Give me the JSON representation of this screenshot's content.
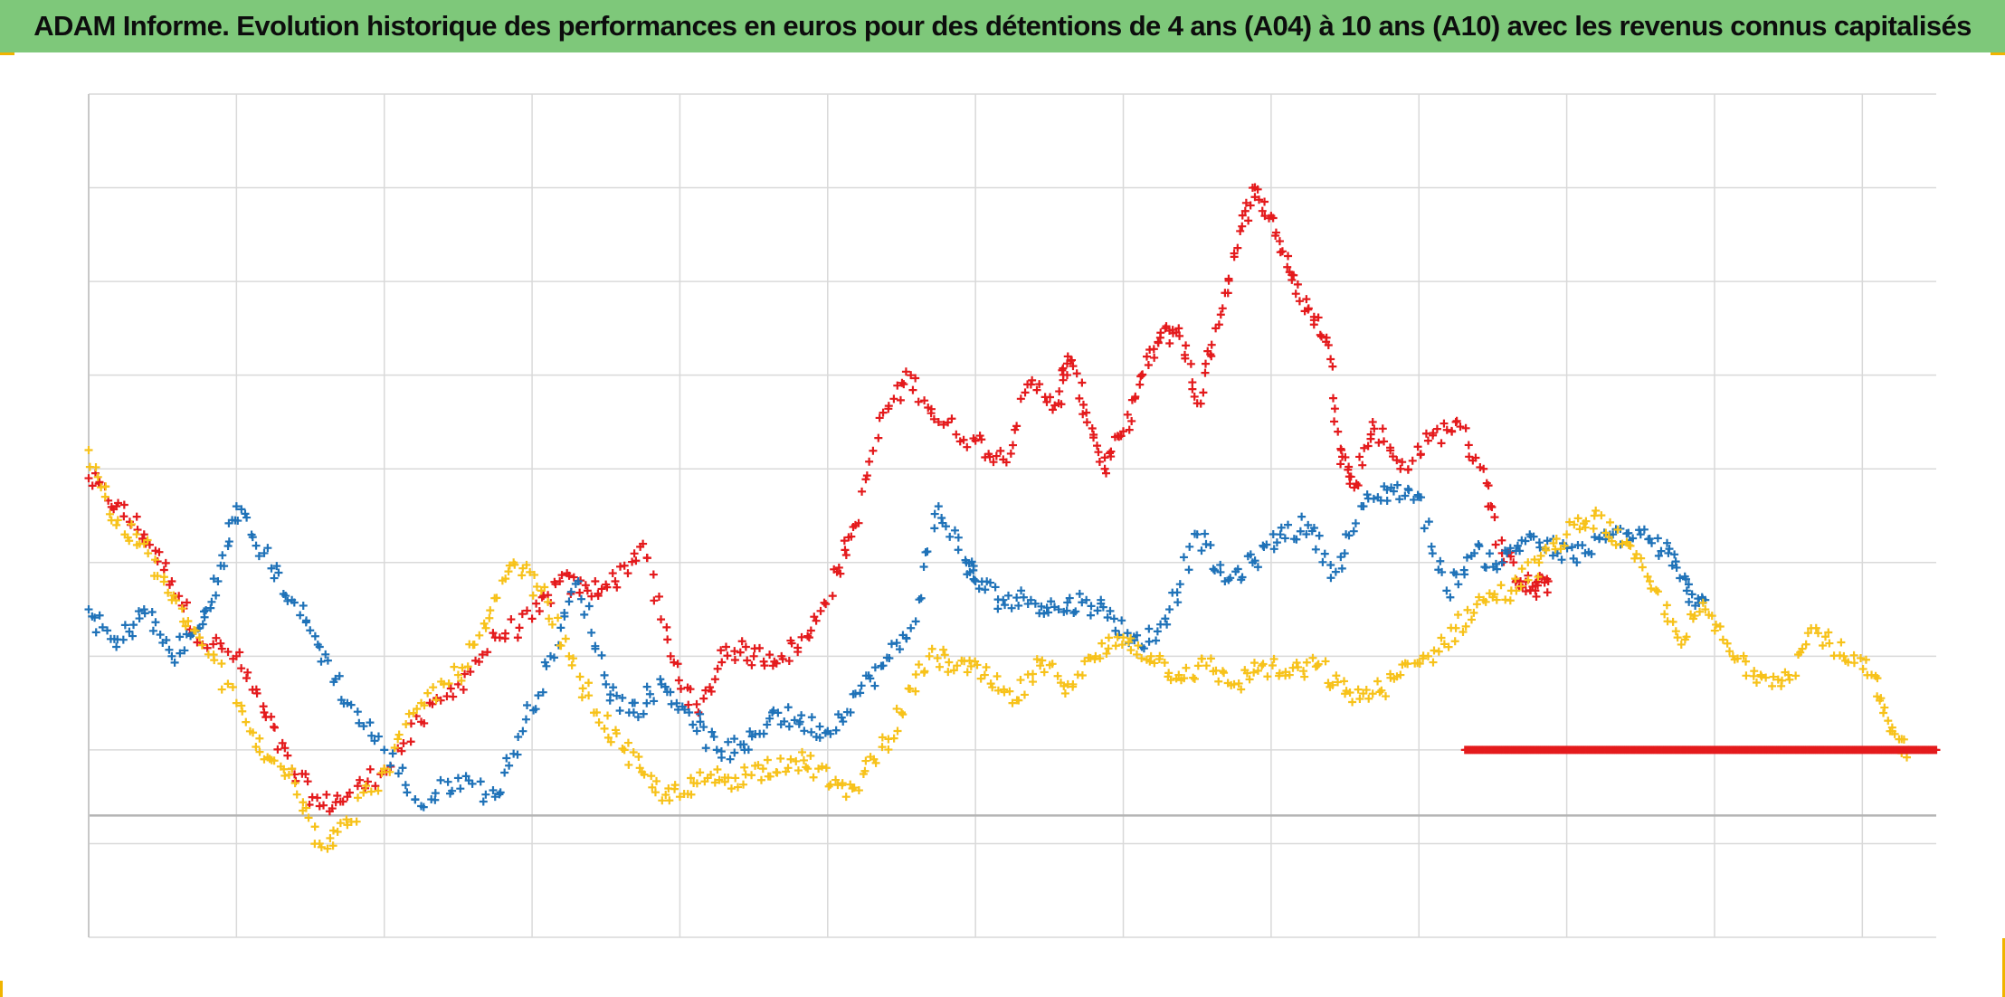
{
  "title": "ADAM Informe. Evolution historique des performances en euros pour des détentions de 4 ans (A04) à 10 ans (A10) avec les revenus connus capitalisés",
  "colors": {
    "title_bg": "#7ec87a",
    "series_red": "#e41a1c",
    "series_blue": "#1f72b8",
    "series_yellow": "#f7c21a",
    "grid": "#d9d9d9"
  },
  "chart_data": {
    "type": "scatter",
    "marker": "plus",
    "grid": true,
    "xlim": [
      0,
      100
    ],
    "ylim": [
      -10,
      80
    ],
    "baseline_y": 3,
    "x_gridlines": [
      0,
      8,
      16,
      24,
      32,
      40,
      48,
      56,
      64,
      72,
      80,
      88,
      96
    ],
    "y_gridlines": [
      -10,
      0,
      10,
      20,
      30,
      40,
      50,
      60,
      70,
      80
    ],
    "series": [
      {
        "color": "#e41a1c",
        "x": [
          0,
          1.5,
          3,
          4.5,
          6,
          8,
          9.5,
          11,
          12.5,
          14,
          16,
          18,
          20,
          22,
          24,
          25.5,
          27,
          28.5,
          30,
          31.5,
          33,
          34.5,
          36,
          37.5,
          39,
          40.5,
          41.5,
          43,
          44.5,
          46,
          48,
          49.5,
          51,
          52.5,
          53,
          54,
          55,
          56,
          57,
          58,
          59,
          60,
          61,
          62,
          63,
          64,
          65,
          66,
          67,
          67.8,
          68.5,
          69.5,
          71,
          72.5,
          74,
          75.5,
          76.5,
          77.5,
          78.3,
          79
        ],
        "y": [
          39,
          36,
          33,
          28,
          22,
          20,
          14,
          8,
          4,
          5,
          8,
          13,
          17,
          22,
          24,
          28,
          27,
          28,
          32,
          20,
          14,
          21,
          20,
          20,
          22,
          29,
          34,
          46,
          50,
          45,
          43,
          41,
          49,
          47,
          52,
          46,
          40,
          44,
          50,
          54,
          55,
          47,
          55,
          63,
          70,
          67,
          61,
          57,
          54,
          42,
          38,
          45,
          40,
          43,
          45,
          40,
          31,
          28,
          27,
          28
        ]
      },
      {
        "color": "#1f72b8",
        "x": [
          0,
          1.5,
          3,
          4.5,
          6,
          7,
          8,
          9.5,
          11,
          12.5,
          14,
          16,
          18,
          20,
          22,
          23.5,
          25,
          26.5,
          28,
          29.5,
          31,
          32.5,
          34,
          35.5,
          37,
          38.5,
          40,
          41.5,
          43,
          44.5,
          46,
          47.5,
          48,
          49.5,
          51,
          52.5,
          54,
          55.5,
          57,
          58.5,
          60,
          61.5,
          63,
          64.5,
          66,
          67.5,
          69,
          70.5,
          72,
          73.5,
          75,
          76.5,
          78,
          79.5,
          81,
          82.5,
          84,
          85.5,
          86.5,
          87.5
        ],
        "y": [
          25,
          21,
          25,
          20,
          23,
          28,
          36,
          31,
          26,
          21,
          15,
          10,
          4,
          7,
          5,
          12,
          20,
          28,
          17,
          14,
          17,
          14,
          10,
          10,
          14,
          13,
          12,
          16,
          19,
          23,
          36,
          30,
          28,
          26,
          26,
          25,
          26,
          24,
          21,
          25,
          33,
          28,
          30,
          33,
          34,
          29,
          36,
          38,
          37,
          27,
          31,
          30,
          33,
          31,
          31,
          33,
          33,
          31,
          27,
          26
        ]
      },
      {
        "color": "#f7c21a",
        "x": [
          0,
          1.5,
          3,
          4.5,
          6,
          8,
          9.5,
          11,
          12.5,
          14,
          16,
          18,
          20,
          21.5,
          23,
          24.5,
          26,
          27.5,
          29,
          30.5,
          32,
          33.5,
          35,
          36.5,
          38,
          39.5,
          41,
          42.5,
          44,
          45.5,
          47,
          48.5,
          50,
          51.5,
          53,
          54.5,
          56,
          57.5,
          59,
          60.5,
          62,
          63.5,
          65,
          66.5,
          68,
          69.5,
          71,
          72.5,
          74,
          75.5,
          77,
          78.5,
          80,
          81.5,
          83,
          84.5,
          86,
          87.5,
          89,
          90.5,
          92,
          93.5,
          95,
          96.5,
          97.5,
          98.5
        ],
        "y": [
          42,
          34,
          32,
          26,
          22,
          15,
          9,
          8,
          0,
          2,
          8,
          15,
          18,
          23,
          30,
          27,
          20,
          14,
          10,
          6,
          5,
          7,
          7,
          8,
          9,
          8,
          5,
          9,
          14,
          20,
          19,
          18,
          15,
          19,
          17,
          20,
          22,
          20,
          18,
          19,
          17,
          19,
          18,
          19,
          16,
          16,
          18,
          20,
          23,
          26,
          27,
          30,
          33,
          35,
          32,
          28,
          22,
          25,
          20,
          18,
          18,
          23,
          20,
          18,
          12,
          10
        ]
      },
      {
        "color": "#e41a1c",
        "x": [
          74.5,
          100
        ],
        "y": [
          10,
          10
        ],
        "dense": true
      }
    ]
  }
}
